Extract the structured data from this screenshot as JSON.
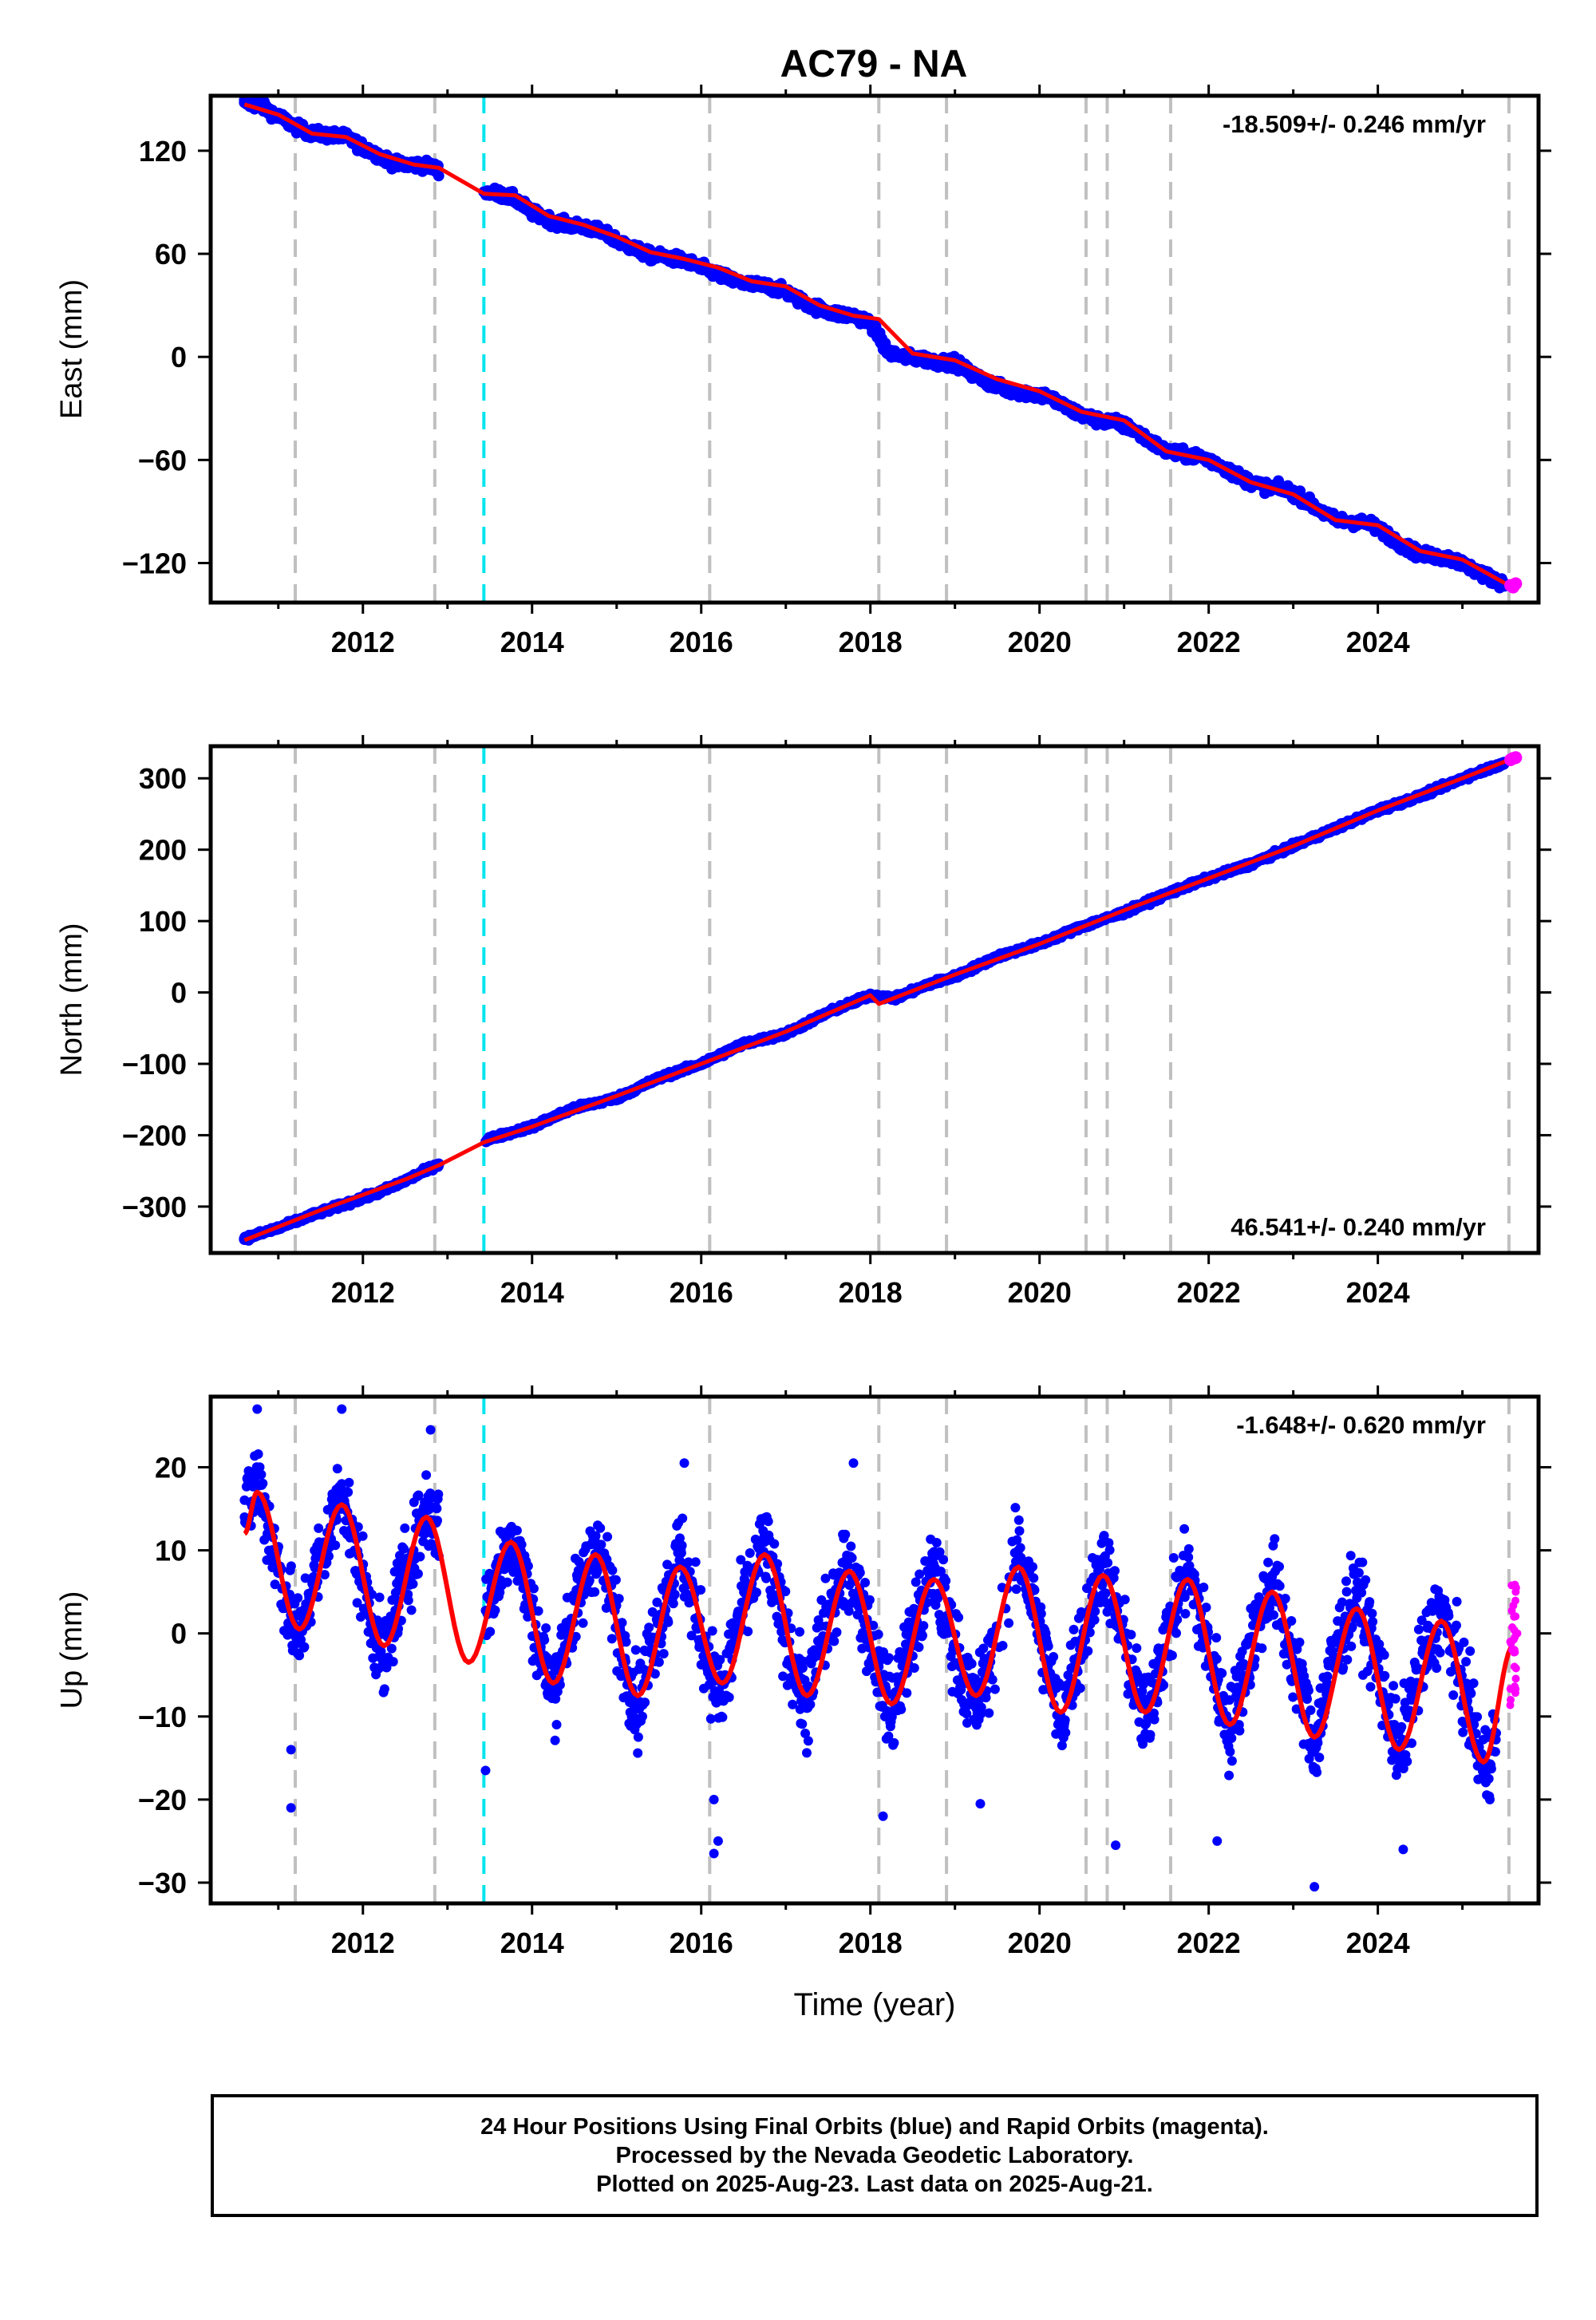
{
  "title": "AC79 - NA",
  "colors": {
    "final_orbits": "#0000ff",
    "rapid_orbits": "#ff00ff",
    "model": "#ff0000",
    "event_line": "#c0c0c0",
    "antenna_line": "#00e5ee",
    "frame": "#000000"
  },
  "footer": {
    "line1": "24 Hour Positions Using Final Orbits (blue) and Rapid Orbits (magenta).",
    "line2": "Processed by the Nevada Geodetic Laboratory.",
    "line3": "Plotted on 2025-Aug-23. Last data on 2025-Aug-21."
  },
  "chart_data": [
    {
      "type": "scatter",
      "component": "east",
      "title": "AC79 - NA",
      "xlabel": "",
      "ylabel": "East (mm)",
      "xlim": [
        2010.2,
        2025.9
      ],
      "ylim": [
        -143,
        152
      ],
      "x_ticks": [
        2012,
        2014,
        2016,
        2018,
        2020,
        2022,
        2024
      ],
      "y_ticks": [
        120,
        60,
        0,
        -60,
        -120
      ],
      "velocity_label": "-18.509+/- 0.246 mm/yr",
      "velocity_position": "top-right",
      "grid": false,
      "event_lines": [
        2011.2,
        2012.85,
        2016.1,
        2018.1,
        2018.9,
        2020.55,
        2020.8,
        2021.55,
        2025.55
      ],
      "antenna_lines": [
        2013.43
      ],
      "model": {
        "x": [
          2010.6,
          2011.0,
          2011.4,
          2011.8,
          2012.2,
          2012.6,
          2012.9,
          2013.43,
          2013.8,
          2014.2,
          2014.6,
          2015.0,
          2015.4,
          2015.8,
          2016.2,
          2016.6,
          2017.0,
          2017.4,
          2017.8,
          2018.1,
          2018.5,
          2019.0,
          2019.5,
          2020.0,
          2020.5,
          2021.0,
          2021.5,
          2022.0,
          2022.5,
          2023.0,
          2023.5,
          2024.0,
          2024.5,
          2025.0,
          2025.55
        ],
        "y": [
          147,
          141,
          130,
          128,
          118,
          112,
          110,
          95,
          94,
          82,
          77,
          70,
          61,
          57,
          52,
          44,
          41,
          30,
          24,
          22,
          2,
          -2,
          -13,
          -20,
          -32,
          -37,
          -55,
          -60,
          -73,
          -80,
          -95,
          -98,
          -113,
          -118,
          -133
        ]
      },
      "series": [
        {
          "name": "Final Orbits",
          "x": [
            2010.6,
            2010.8,
            2011.0,
            2011.2,
            2011.4,
            2011.6,
            2011.8,
            2012.0,
            2012.2,
            2012.4,
            2012.6,
            2012.8,
            2013.43,
            2013.6,
            2013.8,
            2014.0,
            2014.2,
            2014.4,
            2014.6,
            2014.8,
            2015.0,
            2015.2,
            2015.4,
            2015.6,
            2015.8,
            2016.0,
            2016.2,
            2016.4,
            2016.6,
            2016.8,
            2017.0,
            2017.2,
            2017.4,
            2017.6,
            2017.8,
            2018.0,
            2018.2,
            2018.4,
            2018.6,
            2018.8,
            2019.0,
            2019.2,
            2019.4,
            2019.6,
            2020.1,
            2020.3,
            2020.5,
            2020.7,
            2020.9,
            2021.1,
            2021.3,
            2021.5,
            2021.7,
            2021.9,
            2022.1,
            2022.3,
            2022.5,
            2022.7,
            2022.9,
            2023.1,
            2023.3,
            2023.5,
            2023.7,
            2023.9,
            2024.1,
            2024.3,
            2024.5,
            2024.7,
            2024.9,
            2025.1,
            2025.3,
            2025.5
          ],
          "y": [
            148,
            146,
            140,
            134,
            130,
            129,
            128,
            122,
            117,
            112,
            112,
            111,
            96,
            95,
            92,
            84,
            80,
            77,
            76,
            73,
            68,
            63,
            59,
            58,
            56,
            52,
            48,
            44,
            42,
            41,
            38,
            32,
            28,
            25,
            24,
            20,
            3,
            0,
            -1,
            -3,
            -3,
            -10,
            -15,
            -19,
            -23,
            -29,
            -34,
            -37,
            -38,
            -42,
            -49,
            -55,
            -57,
            -58,
            -62,
            -68,
            -73,
            -76,
            -77,
            -82,
            -89,
            -95,
            -96,
            -97,
            -103,
            -110,
            -115,
            -116,
            -118,
            -123,
            -128,
            -132
          ]
        },
        {
          "name": "Rapid Orbits",
          "x": [
            2025.57,
            2025.6,
            2025.63
          ],
          "y": [
            -133,
            -134,
            -132
          ]
        }
      ]
    },
    {
      "type": "scatter",
      "component": "north",
      "xlabel": "",
      "ylabel": "North (mm)",
      "xlim": [
        2010.2,
        2025.9
      ],
      "ylim": [
        -365,
        345
      ],
      "x_ticks": [
        2012,
        2014,
        2016,
        2018,
        2020,
        2022,
        2024
      ],
      "y_ticks": [
        300,
        200,
        100,
        0,
        -100,
        -200,
        -300
      ],
      "velocity_label": "46.541+/- 0.240 mm/yr",
      "velocity_position": "bottom-right",
      "grid": false,
      "event_lines": [
        2011.2,
        2012.85,
        2016.1,
        2018.1,
        2018.9,
        2020.55,
        2020.8,
        2021.55,
        2025.55
      ],
      "antenna_lines": [
        2013.43
      ],
      "model": {
        "x": [
          2010.6,
          2011.5,
          2012.5,
          2012.9,
          2013.43,
          2014.0,
          2015.0,
          2016.0,
          2017.0,
          2018.0,
          2018.1,
          2019.0,
          2020.0,
          2021.0,
          2022.0,
          2023.0,
          2024.0,
          2025.0,
          2025.6
        ],
        "y": [
          -347,
          -305,
          -262,
          -242,
          -210,
          -188,
          -145,
          -100,
          -55,
          -4,
          -16,
          25,
          68,
          115,
          160,
          205,
          255,
          300,
          328
        ]
      },
      "series": [
        {
          "name": "Final Orbits",
          "x": [
            2010.6,
            2011.0,
            2011.4,
            2011.8,
            2012.2,
            2012.6,
            2012.8,
            2013.5,
            2014.0,
            2014.5,
            2015.0,
            2015.5,
            2016.0,
            2016.5,
            2017.0,
            2017.5,
            2018.0,
            2018.3,
            2018.7,
            2019.0,
            2019.5,
            2020.0,
            2020.5,
            2021.0,
            2021.5,
            2022.0,
            2022.5,
            2023.0,
            2023.5,
            2024.0,
            2024.5,
            2025.0,
            2025.5
          ],
          "y": [
            -345,
            -330,
            -312,
            -296,
            -280,
            -258,
            -246,
            -205,
            -188,
            -162,
            -148,
            -120,
            -100,
            -72,
            -58,
            -28,
            -4,
            -8,
            12,
            22,
            50,
            68,
            92,
            112,
            138,
            160,
            180,
            205,
            230,
            255,
            275,
            300,
            322
          ]
        },
        {
          "name": "Rapid Orbits",
          "x": [
            2025.57,
            2025.6,
            2025.63
          ],
          "y": [
            326,
            328,
            329
          ]
        }
      ]
    },
    {
      "type": "scatter",
      "component": "up",
      "xlabel": "Time (year)",
      "ylabel": "Up (mm)",
      "xlim": [
        2010.2,
        2025.9
      ],
      "ylim": [
        -32.5,
        28.5
      ],
      "x_ticks": [
        2012,
        2014,
        2016,
        2018,
        2020,
        2022,
        2024
      ],
      "y_ticks": [
        20,
        10,
        0,
        -10,
        -20,
        -30
      ],
      "velocity_label": "-1.648+/- 0.620 mm/yr",
      "velocity_position": "top-right",
      "grid": false,
      "event_lines": [
        2011.2,
        2012.85,
        2016.1,
        2018.1,
        2018.9,
        2020.55,
        2020.8,
        2021.55,
        2025.55
      ],
      "antenna_lines": [
        2013.43
      ],
      "model": {
        "x": [
          2010.6,
          2010.75,
          2011.25,
          2011.75,
          2012.25,
          2012.75,
          2013.25,
          2013.75,
          2014.25,
          2014.75,
          2015.25,
          2015.75,
          2016.25,
          2016.75,
          2017.25,
          2017.75,
          2018.25,
          2018.75,
          2019.25,
          2019.75,
          2020.25,
          2020.75,
          2021.25,
          2021.75,
          2022.25,
          2022.75,
          2023.25,
          2023.75,
          2024.25,
          2024.75,
          2025.25,
          2025.6
        ],
        "y": [
          12,
          17,
          0.5,
          15.5,
          -1.5,
          14,
          -3.5,
          11,
          -6,
          9.5,
          -7.5,
          8,
          -6,
          9.5,
          -7.5,
          7.5,
          -8.5,
          6.5,
          -7.5,
          8,
          -9.5,
          7,
          -9.5,
          6.5,
          -11,
          5,
          -12.5,
          3,
          -14,
          1.5,
          -15.5,
          -1.5
        ]
      },
      "series": [
        {
          "name": "Final Orbits",
          "x": [
            2010.6,
            2010.75,
            2010.9,
            2011.1,
            2011.25,
            2011.4,
            2011.6,
            2011.75,
            2011.9,
            2012.1,
            2012.25,
            2012.4,
            2012.6,
            2012.75,
            2013.5,
            2013.75,
            2013.9,
            2014.1,
            2014.25,
            2014.4,
            2014.6,
            2014.75,
            2014.9,
            2015.1,
            2015.25,
            2015.4,
            2015.6,
            2015.75,
            2015.9,
            2016.1,
            2016.25,
            2016.4,
            2016.6,
            2016.75,
            2016.9,
            2017.1,
            2017.25,
            2017.4,
            2017.6,
            2017.75,
            2017.9,
            2018.1,
            2018.25,
            2018.4,
            2018.6,
            2018.75,
            2018.9,
            2019.1,
            2019.25,
            2019.4,
            2019.6,
            2019.75,
            2019.9,
            2020.1,
            2020.25,
            2020.4,
            2020.6,
            2020.75,
            2020.9,
            2021.1,
            2021.25,
            2021.4,
            2021.6,
            2021.75,
            2021.9,
            2022.1,
            2022.25,
            2022.4,
            2022.6,
            2022.75,
            2022.9,
            2023.1,
            2023.25,
            2023.4,
            2023.6,
            2023.75,
            2023.9,
            2024.1,
            2024.25,
            2024.4,
            2024.6,
            2024.75,
            2024.9,
            2025.1,
            2025.25,
            2025.4
          ],
          "y": [
            14,
            19,
            12,
            4,
            -1,
            6,
            12,
            18,
            10,
            2,
            -4,
            4,
            10,
            15,
            4,
            12,
            7,
            -2,
            -7,
            0,
            6,
            11,
            6,
            -3,
            -9,
            -2,
            5,
            10,
            4,
            -4,
            -8,
            0,
            6,
            11,
            4,
            -4,
            -9,
            -1,
            4,
            9,
            3,
            -4,
            -10,
            -3,
            3,
            8,
            2,
            -5,
            -9,
            -4,
            3,
            10,
            5,
            -4,
            -11,
            -4,
            3,
            9,
            3,
            -5,
            -11,
            -4,
            3,
            8,
            2,
            -6,
            -12,
            -5,
            2,
            7,
            1,
            -7,
            -14,
            -6,
            1,
            5,
            0,
            -8,
            -15,
            -8,
            -1,
            3,
            -2,
            -10,
            -17,
            -12
          ]
        },
        {
          "name": "Rapid Orbits",
          "x": [
            2025.57,
            2025.59,
            2025.61,
            2025.63,
            2025.65
          ],
          "y": [
            -8,
            -2,
            2,
            5,
            0
          ]
        }
      ]
    }
  ]
}
